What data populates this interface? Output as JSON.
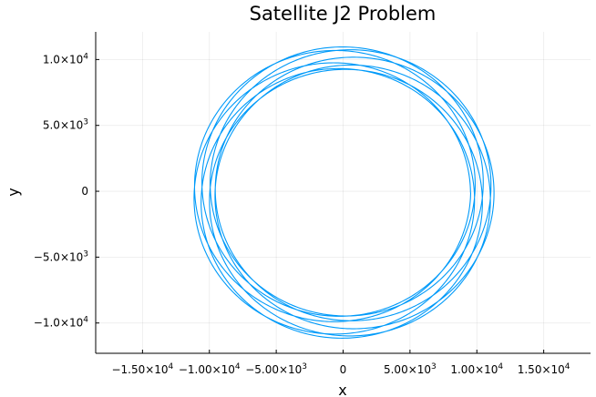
{
  "chart_data": {
    "type": "line",
    "title": "Satellite J2 Problem",
    "xlabel": "x",
    "ylabel": "y",
    "xlim": [
      -18500,
      18500
    ],
    "ylim": [
      -12300,
      12100
    ],
    "grid": true,
    "legend": "none",
    "series_color": "#009af9",
    "x_ticks": [
      {
        "value": -15000,
        "mantissa": "−1.50",
        "exp": "4"
      },
      {
        "value": -10000,
        "mantissa": "−1.00",
        "exp": "4"
      },
      {
        "value": -5000,
        "mantissa": "−5.00",
        "exp": "3"
      },
      {
        "value": 0,
        "mantissa": "0",
        "exp": ""
      },
      {
        "value": 5000,
        "mantissa": "5.00",
        "exp": "3"
      },
      {
        "value": 10000,
        "mantissa": "1.00",
        "exp": "4"
      },
      {
        "value": 15000,
        "mantissa": "1.50",
        "exp": "4"
      }
    ],
    "y_ticks": [
      {
        "value": 10000,
        "mantissa": "1.0",
        "exp": "4"
      },
      {
        "value": 5000,
        "mantissa": "5.0",
        "exp": "3"
      },
      {
        "value": 0,
        "mantissa": "0",
        "exp": ""
      },
      {
        "value": -5000,
        "mantissa": "−5.0",
        "exp": "3"
      },
      {
        "value": -10000,
        "mantissa": "−1.0",
        "exp": "4"
      }
    ],
    "series": [
      {
        "orbit_model": {
          "semi_major_axis": 10400,
          "eccentricity": 0.085,
          "revolutions": 8,
          "perigee_start_deg": 10,
          "perigee_precession_deg_per_rev": 42,
          "y_scale": 0.98,
          "center": [
            0,
            -100
          ]
        }
      }
    ]
  }
}
